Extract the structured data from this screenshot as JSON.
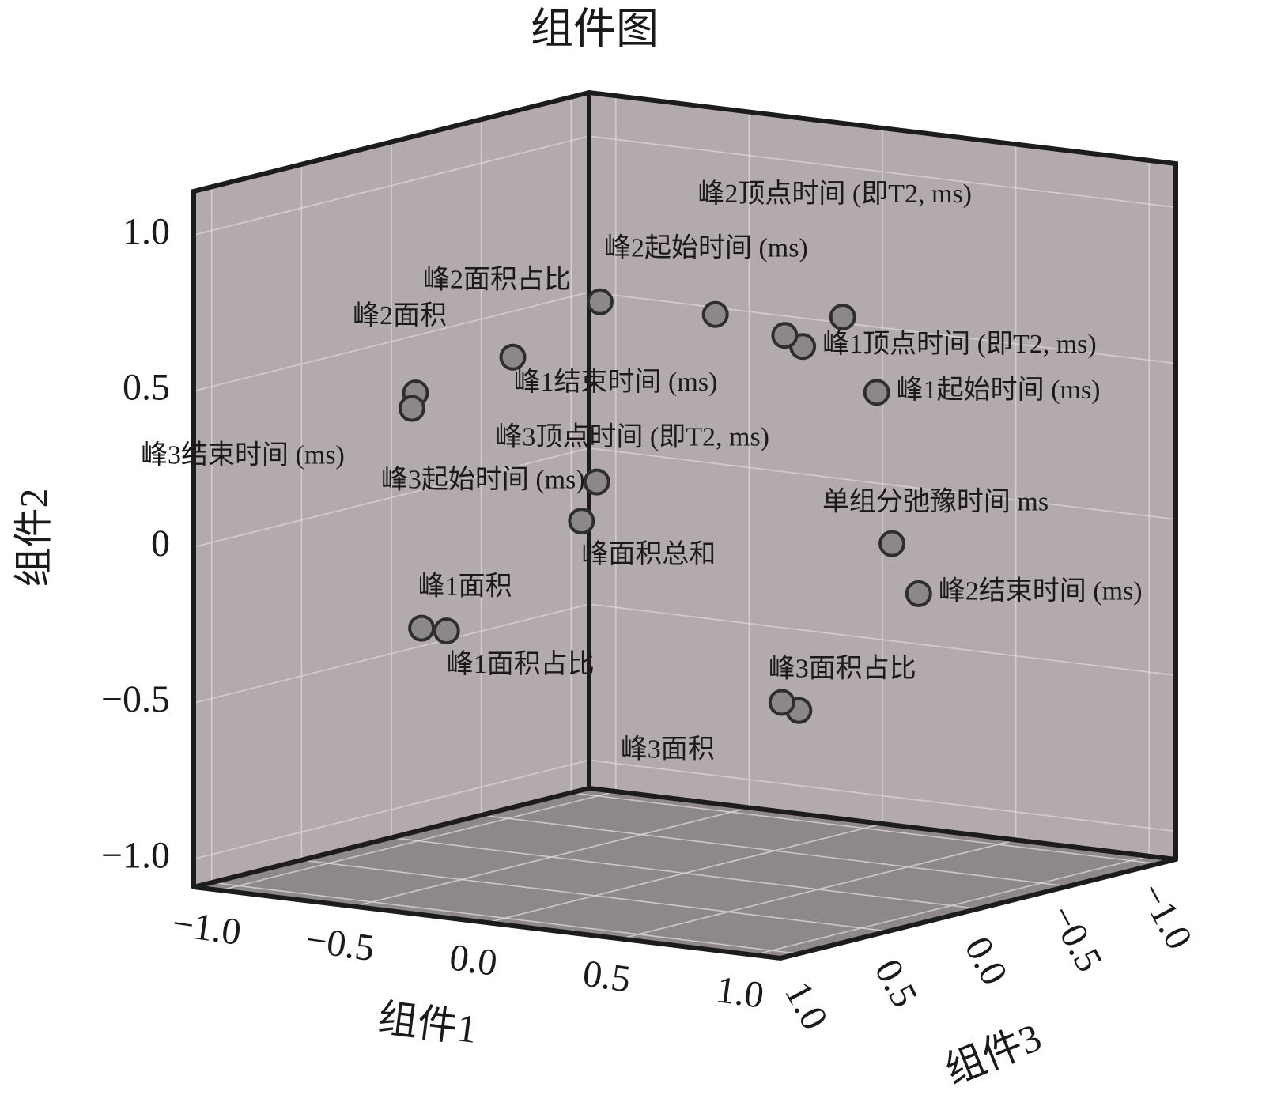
{
  "chart_data": {
    "type": "scatter3d",
    "title": "组件图",
    "xlabel": "组件1",
    "ylabel": "组件2",
    "zlabel": "组件3",
    "xlim": [
      -1.1,
      1.1
    ],
    "ylim": [
      -1.09,
      1.14
    ],
    "zlim": [
      -1.1,
      1.1
    ],
    "xticks": [
      {
        "value": -1,
        "label": "−1.0"
      },
      {
        "value": -0.5,
        "label": "−0.5"
      },
      {
        "value": 0,
        "label": "0.0"
      },
      0.5,
      {
        "value": 1,
        "label": "1.0"
      }
    ],
    "yticks": [
      {
        "value": -1,
        "label": "−1.0"
      },
      {
        "value": -0.5,
        "label": "−0.5"
      },
      0,
      0.5,
      {
        "value": 1,
        "label": "1.0"
      }
    ],
    "zticks": [
      {
        "value": -1,
        "label": "−1.0"
      },
      {
        "value": -0.5,
        "label": "−0.5"
      },
      {
        "value": 0,
        "label": "0.0"
      },
      0.5,
      {
        "value": 1,
        "label": "1.0"
      }
    ],
    "grid": true,
    "color": "#8c8888",
    "points": [
      {
        "label": "峰2顶点时间 (即T2, ms)",
        "x": 0.39,
        "y": 0.69,
        "z": -0.3,
        "label_side": "top"
      },
      {
        "label": "峰2起始时间 (ms)",
        "x": -0.25,
        "y": 0.73,
        "z": 0.1,
        "label_side": "above-right"
      },
      {
        "label": "峰2面积占比",
        "x": -0.51,
        "y": 0.54,
        "z": 0.2,
        "label_side": "above-left"
      },
      {
        "label": "峰2面积",
        "x": -0.74,
        "y": 0.43,
        "z": 0.4,
        "label_side": "above-left"
      },
      {
        "label": "峰1顶点时间 (即T2, ms)",
        "x": 0.24,
        "y": 0.58,
        "z": -0.3,
        "label_side": "right"
      },
      {
        "label": "峰1起始时间 (ms)",
        "x": 0.45,
        "y": 0.44,
        "z": -0.4,
        "label_side": "right"
      },
      {
        "label": "峰1结束时间 (ms)",
        "x": 0.24,
        "y": 0.63,
        "z": -0.2,
        "label_side": "below-left"
      },
      {
        "label": "峰3结束时间 (ms)",
        "x": -0.72,
        "y": 0.39,
        "z": 0.45,
        "label_side": "below-left"
      },
      {
        "label": "峰3顶点时间 (即T2, ms)",
        "x": -0.02,
        "y": 0.67,
        "z": -0.2,
        "label_side": "below"
      },
      {
        "label": "峰3起始时间 (ms)",
        "x": -0.33,
        "y": 0.13,
        "z": 0,
        "label_side": "left"
      },
      {
        "label": "峰面积总和",
        "x": -0.32,
        "y": 0.02,
        "z": 0.1,
        "label_side": "below-right"
      },
      {
        "label": "单组分弛豫时间 ms",
        "x": 0.44,
        "y": -0.06,
        "z": -0.5,
        "label_side": "above"
      },
      {
        "label": "峰2结束时间 (ms)",
        "x": 0.54,
        "y": -0.21,
        "z": -0.5,
        "label_side": "right"
      },
      {
        "label": "峰1面积",
        "x": -0.65,
        "y": -0.3,
        "z": 0.5,
        "label_side": "above"
      },
      {
        "label": "峰1面积占比",
        "x": -0.59,
        "y": -0.31,
        "z": 0.45,
        "label_side": "below-right"
      },
      {
        "label": "峰3面积占比",
        "x": 0.63,
        "y": -0.46,
        "z": 0.3,
        "label_side": "above"
      },
      {
        "label": "峰3面积",
        "x": 0.6,
        "y": -0.43,
        "z": 0.35,
        "label_side": "below-left"
      }
    ]
  }
}
